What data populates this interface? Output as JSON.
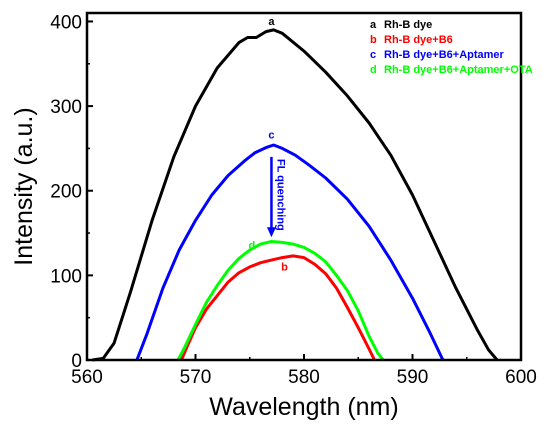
{
  "chart_data": {
    "type": "line",
    "xlabel": "Wavelength (nm)",
    "ylabel": "Intensity (a.u.)",
    "xlim": [
      560,
      600
    ],
    "ylim": [
      0,
      410
    ],
    "xticks": [
      560,
      570,
      580,
      590,
      600
    ],
    "yticks": [
      0,
      100,
      200,
      300,
      400
    ],
    "legend_position": "top-right",
    "series": [
      {
        "id": "a",
        "name": "Rh-B dye",
        "label": "a",
        "color": "#000000",
        "points": [
          [
            560.5,
            0
          ],
          [
            561.5,
            2
          ],
          [
            562.5,
            20
          ],
          [
            564,
            80
          ],
          [
            566,
            165
          ],
          [
            568,
            240
          ],
          [
            570,
            300
          ],
          [
            572,
            345
          ],
          [
            574,
            375
          ],
          [
            574.8,
            381
          ],
          [
            575.6,
            381
          ],
          [
            576.5,
            388
          ],
          [
            577.2,
            390
          ],
          [
            578,
            386
          ],
          [
            580,
            365
          ],
          [
            582,
            340
          ],
          [
            584,
            312
          ],
          [
            586,
            280
          ],
          [
            588,
            242
          ],
          [
            590,
            195
          ],
          [
            592,
            140
          ],
          [
            594,
            85
          ],
          [
            596,
            35
          ],
          [
            597,
            12
          ],
          [
            597.8,
            0
          ]
        ]
      },
      {
        "id": "b",
        "name": "Rh-B dye+B6",
        "label": "b",
        "color": "#ff0000",
        "points": [
          [
            568.7,
            0
          ],
          [
            569.3,
            18
          ],
          [
            570,
            38
          ],
          [
            571,
            60
          ],
          [
            572,
            76
          ],
          [
            573,
            92
          ],
          [
            574,
            103
          ],
          [
            575,
            110
          ],
          [
            576,
            115
          ],
          [
            577,
            118
          ],
          [
            578,
            121
          ],
          [
            579,
            123
          ],
          [
            580,
            121
          ],
          [
            581,
            113
          ],
          [
            582,
            102
          ],
          [
            583,
            85
          ],
          [
            584,
            62
          ],
          [
            585,
            38
          ],
          [
            586,
            13
          ],
          [
            586.5,
            0
          ]
        ]
      },
      {
        "id": "c",
        "name": "Rh-B dye+B6+Aptamer",
        "label": "c",
        "color": "#0000ff",
        "points": [
          [
            564.6,
            0
          ],
          [
            565.5,
            30
          ],
          [
            567,
            85
          ],
          [
            568.5,
            130
          ],
          [
            570,
            165
          ],
          [
            571.5,
            195
          ],
          [
            573,
            218
          ],
          [
            574.5,
            235
          ],
          [
            575.5,
            245
          ],
          [
            576.5,
            251
          ],
          [
            577.2,
            254
          ],
          [
            578,
            250
          ],
          [
            579.2,
            242
          ],
          [
            580.5,
            230
          ],
          [
            582,
            215
          ],
          [
            584,
            190
          ],
          [
            586,
            158
          ],
          [
            588,
            118
          ],
          [
            590,
            73
          ],
          [
            591.5,
            35
          ],
          [
            592.8,
            0
          ]
        ]
      },
      {
        "id": "d",
        "name": "Rh-B dye+B6+Aptamer+OTA",
        "label": "d",
        "color": "#00ff00",
        "points": [
          [
            568.4,
            0
          ],
          [
            569,
            15
          ],
          [
            570,
            42
          ],
          [
            571,
            68
          ],
          [
            572,
            88
          ],
          [
            573,
            106
          ],
          [
            574,
            120
          ],
          [
            575,
            130
          ],
          [
            576,
            137
          ],
          [
            577,
            140
          ],
          [
            578,
            139
          ],
          [
            579,
            137
          ],
          [
            580,
            133
          ],
          [
            581,
            126
          ],
          [
            582,
            116
          ],
          [
            583,
            100
          ],
          [
            584,
            82
          ],
          [
            585,
            58
          ],
          [
            586,
            28
          ],
          [
            586.8,
            8
          ],
          [
            587.3,
            0
          ]
        ]
      }
    ],
    "annotation": {
      "text": "FL quenching",
      "from": [
        577.0,
        240
      ],
      "to": [
        577.0,
        145
      ]
    }
  }
}
